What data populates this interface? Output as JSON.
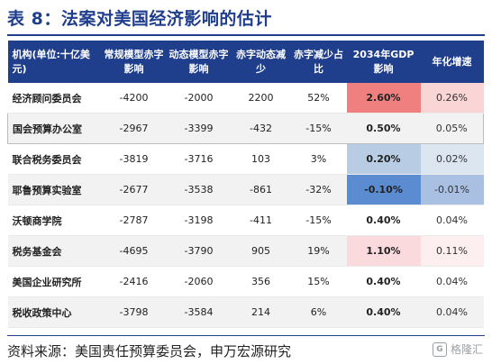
{
  "title": "表 8：法案对美国经济影响的估计",
  "table": {
    "headers": [
      "机构(单位:十亿美元)",
      "常规模型赤字影响",
      "动态模型赤字影响",
      "赤字动态减少",
      "赤字减少占比",
      "2034年GDP影响",
      "年化增速"
    ],
    "rows": [
      {
        "org": "经济顾问委员会",
        "static": "-4200",
        "dynamic": "-2000",
        "reduction": "2200",
        "share": "52%",
        "gdp": "2.60%",
        "growth": "0.26%",
        "gdp_color": "#f08080",
        "growth_color": "#f9d5d5"
      },
      {
        "org": "国会预算办公室",
        "static": "-2967",
        "dynamic": "-3399",
        "reduction": "-432",
        "share": "-15%",
        "gdp": "0.50%",
        "growth": "0.05%",
        "gdp_color": "",
        "growth_color": ""
      },
      {
        "org": "联合税务委员会",
        "static": "-3819",
        "dynamic": "-3716",
        "reduction": "103",
        "share": "3%",
        "gdp": "0.20%",
        "growth": "0.02%",
        "gdp_color": "#b8cce4",
        "growth_color": "#dce6f1"
      },
      {
        "org": "耶鲁预算实验室",
        "static": "-2677",
        "dynamic": "-3538",
        "reduction": "-861",
        "share": "-32%",
        "gdp": "-0.10%",
        "growth": "-0.01%",
        "gdp_color": "#5b8bd0",
        "growth_color": "#a9c0e3"
      },
      {
        "org": "沃顿商学院",
        "static": "-2787",
        "dynamic": "-3198",
        "reduction": "-411",
        "share": "-15%",
        "gdp": "0.40%",
        "growth": "0.04%",
        "gdp_color": "",
        "growth_color": ""
      },
      {
        "org": "税务基金会",
        "static": "-4695",
        "dynamic": "-3790",
        "reduction": "905",
        "share": "19%",
        "gdp": "1.10%",
        "growth": "0.11%",
        "gdp_color": "#fadadd",
        "growth_color": "#fdeef0"
      },
      {
        "org": "美国企业研究所",
        "static": "-2416",
        "dynamic": "-2060",
        "reduction": "356",
        "share": "15%",
        "gdp": "0.40%",
        "growth": "0.04%",
        "gdp_color": "",
        "growth_color": ""
      },
      {
        "org": "税收政策中心",
        "static": "-3798",
        "dynamic": "-3584",
        "reduction": "214",
        "share": "6%",
        "gdp": "0.40%",
        "growth": "0.04%",
        "gdp_color": "",
        "growth_color": ""
      }
    ]
  },
  "source": "资料来源：美国责任预算委员会，申万宏源研究",
  "watermark": {
    "icon": "G",
    "text": "格隆汇"
  },
  "colors": {
    "header_bg": "#1f3e8c",
    "title": "#1f3e8c"
  }
}
